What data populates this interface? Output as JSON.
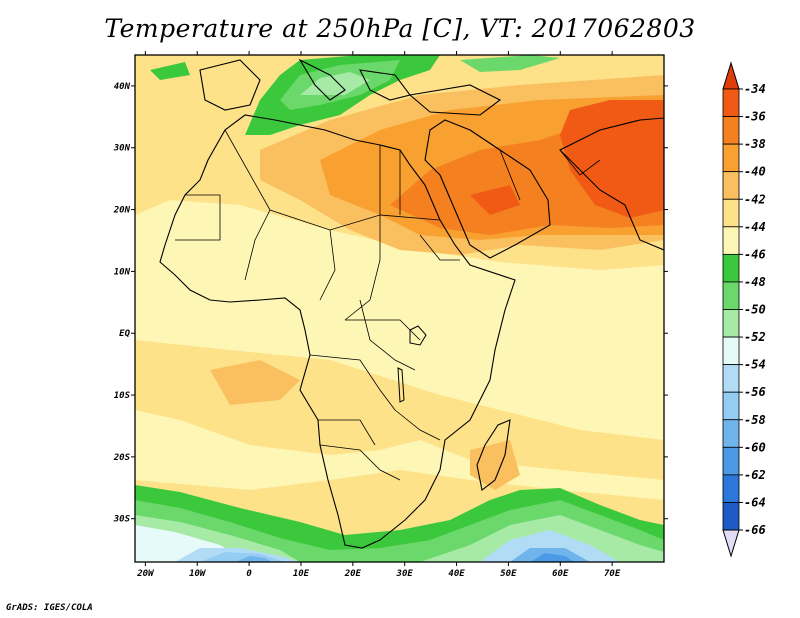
{
  "title": "Temperature at 250hPa [C], VT: 2017062803",
  "credit": "GrADS: IGES/COLA",
  "map": {
    "lon_range": [
      -22,
      80
    ],
    "lat_range": [
      -37,
      45
    ],
    "lon_ticks": [
      "20W",
      "10W",
      "0",
      "10E",
      "20E",
      "30E",
      "40E",
      "50E",
      "60E",
      "70E"
    ],
    "lat_ticks": [
      "40N",
      "30N",
      "20N",
      "10N",
      "EQ",
      "10S",
      "20S",
      "30S"
    ]
  },
  "colorbar": {
    "labels": [
      "-34",
      "-36",
      "-38",
      "-40",
      "-42",
      "-44",
      "-46",
      "-48",
      "-50",
      "-52",
      "-54",
      "-56",
      "-58",
      "-60",
      "-62",
      "-64",
      "-66"
    ],
    "colors": [
      "#f05a14",
      "#f48020",
      "#f8a030",
      "#fac060",
      "#fde28a",
      "#fef6b4",
      "#3cc83c",
      "#6ad86a",
      "#a6eaa6",
      "#e6fafa",
      "#b2dcf6",
      "#94ccf2",
      "#70b4ec",
      "#4c9ae6",
      "#2c78da",
      "#1c5cc4",
      "#0a2a80"
    ],
    "top_arrow": "#e03c0c",
    "bottom_arrow": "#e2dcf4"
  }
}
